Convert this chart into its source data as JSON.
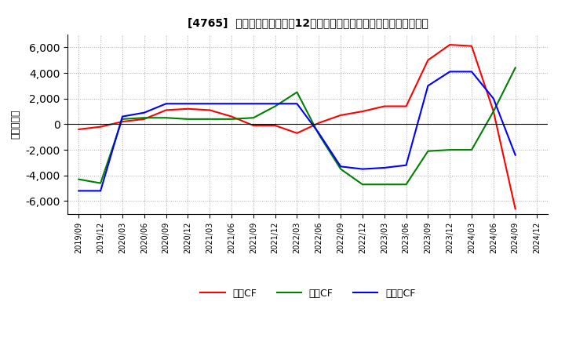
{
  "title": "[4765]  キャッシュフローの12か月移動合計の対前年同期増減額の推移",
  "ylabel": "（百万円）",
  "background_color": "#ffffff",
  "plot_bg_color": "#ffffff",
  "grid_color": "#aaaaaa",
  "x_labels": [
    "2019/09",
    "2019/12",
    "2020/03",
    "2020/06",
    "2020/09",
    "2020/12",
    "2021/03",
    "2021/06",
    "2021/09",
    "2021/12",
    "2022/03",
    "2022/06",
    "2022/09",
    "2022/12",
    "2023/03",
    "2023/06",
    "2023/09",
    "2023/12",
    "2024/03",
    "2024/06",
    "2024/09",
    "2024/12"
  ],
  "operating_cf": [
    -400,
    -200,
    200,
    400,
    1100,
    1200,
    1100,
    600,
    -100,
    -100,
    -700,
    100,
    700,
    1000,
    1400,
    1400,
    5000,
    6200,
    6100,
    1000,
    -6600,
    null
  ],
  "investing_cf": [
    -4300,
    -4600,
    400,
    500,
    500,
    400,
    400,
    400,
    500,
    1400,
    2500,
    -800,
    -3500,
    -4700,
    -4700,
    -4700,
    -2100,
    -2000,
    -2000,
    1000,
    4400,
    null
  ],
  "free_cf": [
    -5200,
    -5200,
    600,
    900,
    1600,
    1600,
    1600,
    1600,
    1600,
    1600,
    1600,
    -700,
    -3300,
    -3500,
    -3400,
    -3200,
    3000,
    4100,
    4100,
    2000,
    -2400,
    null
  ],
  "ylim": [
    -7000,
    7000
  ],
  "yticks": [
    -6000,
    -4000,
    -2000,
    0,
    2000,
    4000,
    6000
  ],
  "operating_color": "#ff0000",
  "investing_color": "#008000",
  "free_color": "#0000ff",
  "legend_labels": [
    "営業CF",
    "投資CF",
    "フリーCF"
  ]
}
